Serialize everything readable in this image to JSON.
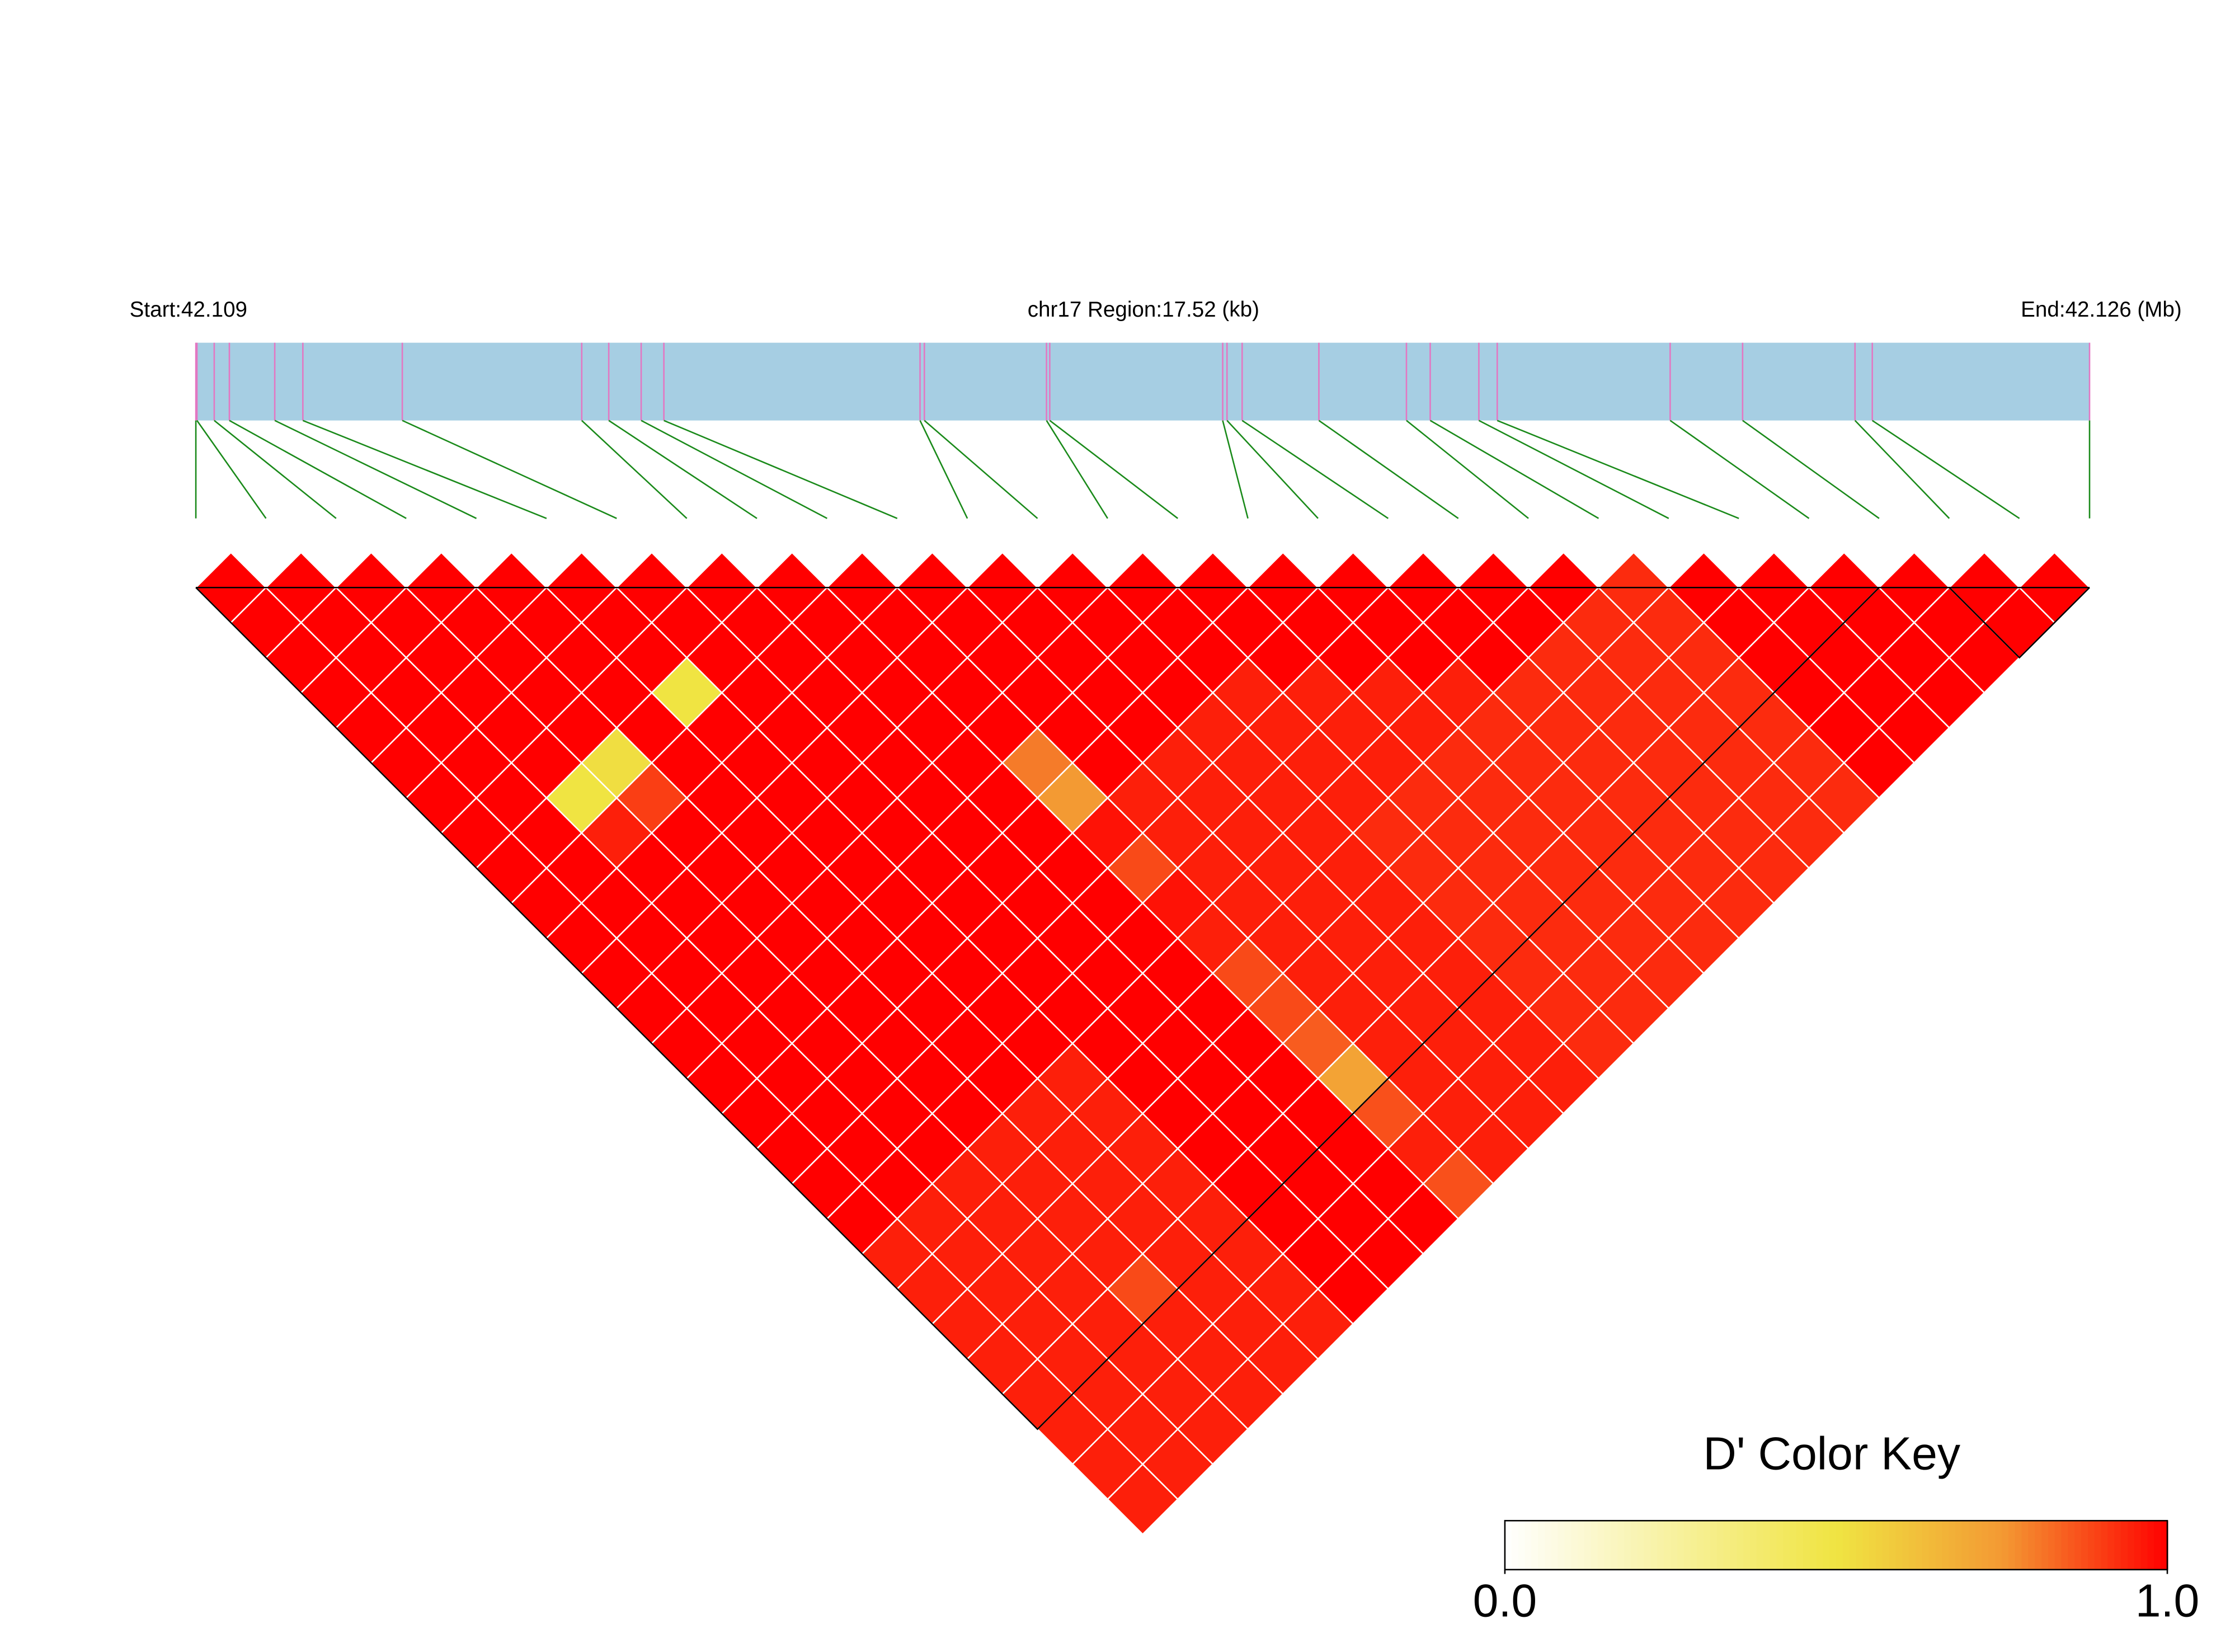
{
  "chart_data": {
    "type": "ld-heatmap",
    "start_label": "Start:42.109",
    "region_label": "chr17 Region:17.52 (kb)",
    "end_label": "End:42.126 (Mb)",
    "positions": [
      0,
      0.01,
      0.17,
      0.31,
      0.73,
      0.99,
      1.91,
      3.57,
      3.82,
      4.12,
      4.33,
      6.7,
      6.74,
      7.87,
      7.9,
      9.5,
      9.54,
      9.68,
      10.39,
      11.2,
      11.42,
      11.87,
      12.04,
      13.64,
      14.31,
      15.35,
      15.51,
      17.52
    ],
    "ld": [
      [
        1,
        1,
        1,
        1,
        1,
        1,
        1,
        1,
        1,
        1,
        1,
        1,
        1,
        1,
        1,
        1,
        1,
        1,
        1,
        0.95,
        0.95,
        0.95,
        0.95,
        0.95,
        0.95,
        0.95,
        0.95
      ],
      [
        1,
        1,
        1,
        1,
        1,
        1,
        1,
        1,
        1,
        1,
        1,
        1,
        1,
        1,
        1,
        1,
        1,
        1,
        0.95,
        0.95,
        0.95,
        0.95,
        0.95,
        0.95,
        0.95,
        0.95
      ],
      [
        1,
        1,
        1,
        1,
        1,
        1,
        0.5,
        0.95,
        1,
        1,
        1,
        1,
        1,
        1,
        1,
        1,
        1,
        0.95,
        0.95,
        0.95,
        0.95,
        0.95,
        0.95,
        0.95,
        0.95
      ],
      [
        1,
        1,
        1,
        1,
        1,
        0.52,
        0.9,
        1,
        1,
        1,
        1,
        1,
        1,
        1,
        1,
        1,
        0.95,
        0.95,
        0.95,
        0.95,
        0.88,
        0.95,
        0.95,
        0.95
      ],
      [
        1,
        1,
        1,
        1,
        1,
        1,
        1,
        1,
        1,
        1,
        1,
        1,
        1,
        1,
        1,
        0.95,
        0.95,
        0.95,
        0.95,
        0.95,
        0.95,
        0.95,
        0.95
      ],
      [
        1,
        1,
        1,
        0.5,
        1,
        1,
        1,
        1,
        1,
        1,
        1,
        1,
        1,
        1,
        0.95,
        0.95,
        0.95,
        0.95,
        0.95,
        0.95,
        0.95,
        0.95
      ],
      [
        1,
        1,
        1,
        1,
        1,
        1,
        1,
        1,
        1,
        1,
        1,
        1,
        1,
        1,
        1,
        1,
        1,
        1,
        1,
        1,
        1
      ],
      [
        1,
        1,
        1,
        1,
        1,
        1,
        1,
        1,
        1,
        1,
        1,
        1,
        1,
        1,
        1,
        1,
        1,
        1,
        1,
        1
      ],
      [
        1,
        1,
        1,
        1,
        1,
        1,
        1,
        1,
        1,
        1,
        1,
        1,
        1,
        1,
        1,
        1,
        1,
        1,
        1
      ],
      [
        1,
        1,
        1,
        1,
        1,
        0.8,
        0.75,
        0.97,
        0.88,
        0.97,
        0.95,
        0.88,
        0.88,
        0.85,
        0.72,
        0.87,
        0.95,
        0.87
      ],
      [
        1,
        1,
        1,
        1,
        1,
        1,
        0.95,
        0.95,
        0.95,
        0.95,
        0.95,
        0.95,
        0.95,
        0.95,
        0.95,
        0.95,
        0.95
      ],
      [
        1,
        1,
        1,
        1,
        1,
        0.95,
        0.95,
        0.95,
        0.95,
        0.95,
        0.95,
        0.95,
        0.95,
        0.95,
        0.95,
        0.95
      ],
      [
        1,
        1,
        1,
        1,
        0.95,
        0.95,
        0.95,
        0.95,
        0.95,
        0.95,
        0.95,
        0.95,
        0.95,
        0.95,
        0.95
      ],
      [
        1,
        1,
        1,
        0.95,
        0.95,
        0.95,
        0.95,
        0.93,
        0.93,
        0.93,
        0.93,
        0.93,
        0.93,
        0.93
      ],
      [
        1,
        1,
        1,
        0.95,
        0.95,
        0.95,
        0.93,
        0.93,
        0.93,
        0.93,
        0.93,
        0.93,
        0.93
      ],
      [
        1,
        1,
        1,
        0.95,
        0.95,
        0.93,
        0.93,
        0.93,
        0.93,
        0.93,
        0.93,
        0.93
      ],
      [
        1,
        1,
        1,
        0.95,
        0.93,
        0.93,
        0.93,
        0.93,
        0.93,
        0.93,
        0.93
      ],
      [
        1,
        1,
        1,
        0.93,
        0.93,
        0.93,
        0.93,
        0.93,
        0.93,
        0.93
      ],
      [
        1,
        1,
        0.93,
        0.93,
        0.93,
        0.93,
        0.93,
        0.93,
        0.93
      ],
      [
        1,
        0.93,
        0.93,
        0.93,
        0.93,
        0.93,
        0.93,
        0.93
      ],
      [
        0.93,
        0.93,
        0.93,
        0.93,
        0.93,
        0.93,
        0.93
      ],
      [
        1,
        1,
        1,
        1,
        1,
        1
      ],
      [
        1,
        1,
        1,
        1,
        1
      ],
      [
        1,
        1,
        1,
        1
      ],
      [
        1,
        1,
        1
      ],
      [
        1,
        1
      ],
      [
        1
      ]
    ],
    "blocks": [
      [
        0,
        24
      ],
      [
        25,
        27
      ]
    ],
    "key_title": "D' Color Key",
    "key_ticks": [
      {
        "value": 0,
        "label": "0.0"
      },
      {
        "value": 1,
        "label": "1.0"
      }
    ]
  }
}
